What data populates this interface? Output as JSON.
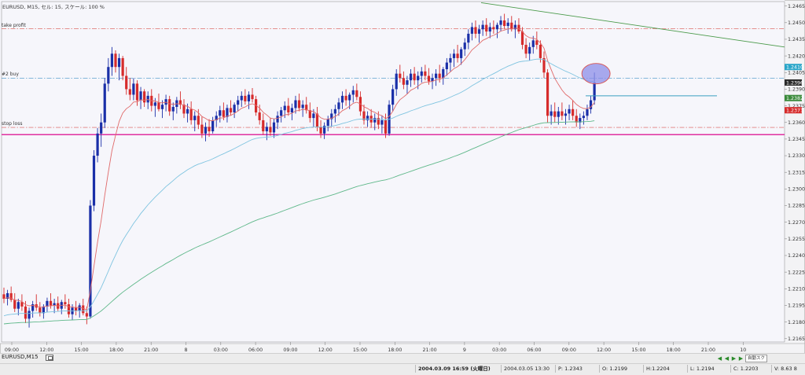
{
  "header": {
    "label": "EURUSD, M15, セル: 15, スケール: 100 %"
  },
  "hlines": [
    {
      "key": "tp",
      "label": "take profit",
      "price": 1.24445,
      "color": "#d9534f",
      "style": "dashdot",
      "width": 0.7
    },
    {
      "key": "buy",
      "label": "#2 buy",
      "price": 1.24,
      "color": "#3f8fc6",
      "style": "dashdot",
      "width": 0.7
    },
    {
      "key": "sl",
      "label": "stop loss",
      "price": 1.23555,
      "color": "#d9534f",
      "style": "dashdot",
      "width": 0.7
    },
    {
      "key": "magenta",
      "label": "",
      "price": 1.2349,
      "color": "#e0309f",
      "style": "solid",
      "width": 1.4
    }
  ],
  "price_axis": {
    "ticks": [
      "1.2465",
      "1.2450",
      "1.2435",
      "1.2420",
      "1.2405",
      "1.2390",
      "1.2375",
      "1.2360",
      "1.2345",
      "1.2330",
      "1.2315",
      "1.2300",
      "1.2285",
      "1.2270",
      "1.2255",
      "1.2240",
      "1.2225",
      "1.2210",
      "1.2195",
      "1.2180",
      "1.2165"
    ],
    "tags": [
      {
        "text": "1.2410",
        "price": 1.241,
        "color": "#2aa6c9",
        "fg": "#ffffff"
      },
      {
        "text": "1.2396",
        "price": 1.2396,
        "color": "#2b2b2b",
        "fg": "#ffffff"
      },
      {
        "text": "1.2382",
        "price": 1.2382,
        "color": "#3a8a3a",
        "fg": "#ffffff"
      },
      {
        "text": "1.2371",
        "price": 1.2371,
        "color": "#d62b2b",
        "fg": "#ffffff"
      }
    ]
  },
  "time_axis": {
    "labels": [
      "09:00",
      "12:00",
      "15:00",
      "18:00",
      "21:00",
      "8",
      "03:00",
      "06:00",
      "09:00",
      "12:00",
      "15:00",
      "18:00",
      "21:00",
      "9",
      "03:00",
      "06:00",
      "09:00",
      "12:00",
      "15:00",
      "18:00",
      "21:00",
      "10"
    ]
  },
  "bottom_tab": {
    "label": "EURUSD,M15"
  },
  "scroll": {
    "prev": "◀",
    "prev2": "◀",
    "next": "▶",
    "next2": "▶",
    "box": "自動スク"
  },
  "status": {
    "datetime": "2004.03.09 16:59 (火曜日)",
    "time2": "2004.03.05 13:30",
    "p": "P: 1.2343",
    "o": "O: 1.2199",
    "h": "H:1.2204",
    "l": "L: 1.2194",
    "c": "C: 1.2203",
    "v": "V: 8.63 8"
  },
  "chart_data": {
    "type": "candlestick",
    "symbol": "EURUSD",
    "timeframe": "M15",
    "y_range": [
      1.2162,
      1.2469
    ],
    "up_color": "#1a2fa8",
    "down_color": "#d62b2b",
    "candles": [
      [
        1.2205,
        1.2211,
        1.2197,
        1.2201
      ],
      [
        1.2201,
        1.2209,
        1.2195,
        1.2206
      ],
      [
        1.2206,
        1.2212,
        1.2198,
        1.22
      ],
      [
        1.22,
        1.2206,
        1.2189,
        1.2192
      ],
      [
        1.2192,
        1.2201,
        1.2186,
        1.2198
      ],
      [
        1.2198,
        1.2205,
        1.219,
        1.2194
      ],
      [
        1.2194,
        1.2199,
        1.2179,
        1.2183
      ],
      [
        1.2183,
        1.2193,
        1.2175,
        1.219
      ],
      [
        1.219,
        1.2199,
        1.2184,
        1.2196
      ],
      [
        1.2196,
        1.2205,
        1.219,
        1.2193
      ],
      [
        1.2193,
        1.2198,
        1.2185,
        1.2188
      ],
      [
        1.2188,
        1.2196,
        1.2183,
        1.2194
      ],
      [
        1.2194,
        1.2202,
        1.2189,
        1.2199
      ],
      [
        1.2199,
        1.2206,
        1.2192,
        1.2195
      ],
      [
        1.2195,
        1.2201,
        1.2188,
        1.2197
      ],
      [
        1.2197,
        1.2203,
        1.219,
        1.2192
      ],
      [
        1.2192,
        1.22,
        1.2187,
        1.2198
      ],
      [
        1.2198,
        1.2205,
        1.2192,
        1.2196
      ],
      [
        1.2196,
        1.2201,
        1.2184,
        1.2187
      ],
      [
        1.2187,
        1.2196,
        1.2182,
        1.2193
      ],
      [
        1.2193,
        1.2199,
        1.2186,
        1.219
      ],
      [
        1.219,
        1.2197,
        1.2184,
        1.2195
      ],
      [
        1.2195,
        1.2201,
        1.2186,
        1.2188
      ],
      [
        1.2188,
        1.2194,
        1.2178,
        1.2185
      ],
      [
        1.2185,
        1.229,
        1.2183,
        1.2285
      ],
      [
        1.2285,
        1.2335,
        1.228,
        1.233
      ],
      [
        1.233,
        1.2355,
        1.2324,
        1.235
      ],
      [
        1.235,
        1.2368,
        1.2338,
        1.236
      ],
      [
        1.236,
        1.24,
        1.2355,
        1.2395
      ],
      [
        1.2395,
        1.2418,
        1.2388,
        1.241
      ],
      [
        1.241,
        1.2428,
        1.2402,
        1.2422
      ],
      [
        1.2422,
        1.2425,
        1.2405,
        1.241
      ],
      [
        1.241,
        1.2422,
        1.2398,
        1.2418
      ],
      [
        1.2418,
        1.242,
        1.2398,
        1.2402
      ],
      [
        1.2402,
        1.241,
        1.2385,
        1.239
      ],
      [
        1.239,
        1.24,
        1.238,
        1.2385
      ],
      [
        1.2385,
        1.24,
        1.238,
        1.2395
      ],
      [
        1.2395,
        1.2398,
        1.2375,
        1.238
      ],
      [
        1.238,
        1.2392,
        1.2372,
        1.2388
      ],
      [
        1.2388,
        1.239,
        1.2374,
        1.2378
      ],
      [
        1.2378,
        1.2388,
        1.2372,
        1.2384
      ],
      [
        1.2384,
        1.239,
        1.237,
        1.2375
      ],
      [
        1.2375,
        1.2382,
        1.2365,
        1.2378
      ],
      [
        1.2378,
        1.2386,
        1.237,
        1.2372
      ],
      [
        1.2372,
        1.238,
        1.2364,
        1.2376
      ],
      [
        1.2376,
        1.2385,
        1.237,
        1.2381
      ],
      [
        1.2381,
        1.2384,
        1.2366,
        1.237
      ],
      [
        1.237,
        1.2378,
        1.2362,
        1.2374
      ],
      [
        1.2374,
        1.2383,
        1.2368,
        1.238
      ],
      [
        1.238,
        1.2388,
        1.2372,
        1.2376
      ],
      [
        1.2376,
        1.2381,
        1.2364,
        1.2368
      ],
      [
        1.2368,
        1.2377,
        1.236,
        1.2372
      ],
      [
        1.2372,
        1.2379,
        1.2358,
        1.2362
      ],
      [
        1.2362,
        1.237,
        1.2352,
        1.2366
      ],
      [
        1.2366,
        1.2372,
        1.2354,
        1.2358
      ],
      [
        1.2358,
        1.2365,
        1.2346,
        1.235
      ],
      [
        1.235,
        1.236,
        1.2343,
        1.2356
      ],
      [
        1.2356,
        1.2363,
        1.2347,
        1.2352
      ],
      [
        1.2352,
        1.2365,
        1.235,
        1.2362
      ],
      [
        1.2362,
        1.237,
        1.2356,
        1.2366
      ],
      [
        1.2366,
        1.2375,
        1.236,
        1.2371
      ],
      [
        1.2371,
        1.2378,
        1.2362,
        1.2365
      ],
      [
        1.2365,
        1.2376,
        1.236,
        1.2373
      ],
      [
        1.2373,
        1.238,
        1.2366,
        1.2369
      ],
      [
        1.2369,
        1.2378,
        1.2364,
        1.2376
      ],
      [
        1.2376,
        1.2384,
        1.237,
        1.238
      ],
      [
        1.238,
        1.2388,
        1.2374,
        1.2384
      ],
      [
        1.2384,
        1.239,
        1.2376,
        1.2379
      ],
      [
        1.2379,
        1.2388,
        1.2372,
        1.2385
      ],
      [
        1.2385,
        1.2391,
        1.2378,
        1.2381
      ],
      [
        1.2381,
        1.2384,
        1.2366,
        1.2369
      ],
      [
        1.2369,
        1.2376,
        1.2358,
        1.2362
      ],
      [
        1.2362,
        1.2368,
        1.2349,
        1.2352
      ],
      [
        1.2352,
        1.236,
        1.2344,
        1.2356
      ],
      [
        1.2356,
        1.2364,
        1.2348,
        1.2351
      ],
      [
        1.2351,
        1.2363,
        1.2346,
        1.236
      ],
      [
        1.236,
        1.237,
        1.2354,
        1.2366
      ],
      [
        1.2366,
        1.2374,
        1.236,
        1.2371
      ],
      [
        1.2371,
        1.2379,
        1.2364,
        1.2375
      ],
      [
        1.2375,
        1.2382,
        1.2366,
        1.2369
      ],
      [
        1.2369,
        1.2377,
        1.2362,
        1.2373
      ],
      [
        1.2373,
        1.2384,
        1.2368,
        1.238
      ],
      [
        1.238,
        1.2386,
        1.237,
        1.2373
      ],
      [
        1.2373,
        1.238,
        1.2365,
        1.2376
      ],
      [
        1.2376,
        1.2383,
        1.2368,
        1.2371
      ],
      [
        1.2371,
        1.2378,
        1.236,
        1.2364
      ],
      [
        1.2364,
        1.2372,
        1.2356,
        1.2368
      ],
      [
        1.2368,
        1.2374,
        1.2352,
        1.2356
      ],
      [
        1.2356,
        1.2362,
        1.2346,
        1.235
      ],
      [
        1.235,
        1.236,
        1.2345,
        1.2357
      ],
      [
        1.2357,
        1.2366,
        1.2352,
        1.2363
      ],
      [
        1.2363,
        1.2372,
        1.2356,
        1.2368
      ],
      [
        1.2368,
        1.2376,
        1.236,
        1.2372
      ],
      [
        1.2372,
        1.2382,
        1.2366,
        1.2378
      ],
      [
        1.2378,
        1.2388,
        1.2372,
        1.2384
      ],
      [
        1.2384,
        1.239,
        1.2375,
        1.238
      ],
      [
        1.238,
        1.2387,
        1.2372,
        1.2385
      ],
      [
        1.2385,
        1.2393,
        1.2378,
        1.2389
      ],
      [
        1.2389,
        1.2395,
        1.238,
        1.2383
      ],
      [
        1.2383,
        1.2388,
        1.2366,
        1.237
      ],
      [
        1.237,
        1.2376,
        1.2358,
        1.2362
      ],
      [
        1.2362,
        1.237,
        1.2356,
        1.2366
      ],
      [
        1.2366,
        1.2372,
        1.2355,
        1.236
      ],
      [
        1.236,
        1.2368,
        1.2353,
        1.2364
      ],
      [
        1.2364,
        1.237,
        1.2354,
        1.2358
      ],
      [
        1.2358,
        1.2366,
        1.235,
        1.2362
      ],
      [
        1.2362,
        1.2368,
        1.2346,
        1.235
      ],
      [
        1.235,
        1.238,
        1.2348,
        1.2376
      ],
      [
        1.2376,
        1.2394,
        1.237,
        1.239
      ],
      [
        1.239,
        1.2408,
        1.2384,
        1.2404
      ],
      [
        1.2404,
        1.2412,
        1.2396,
        1.24
      ],
      [
        1.24,
        1.2406,
        1.239,
        1.2394
      ],
      [
        1.2394,
        1.2402,
        1.2386,
        1.2398
      ],
      [
        1.2398,
        1.2408,
        1.2392,
        1.2404
      ],
      [
        1.2404,
        1.241,
        1.2394,
        1.2398
      ],
      [
        1.2398,
        1.2406,
        1.239,
        1.2402
      ],
      [
        1.2402,
        1.241,
        1.2396,
        1.2406
      ],
      [
        1.2406,
        1.2412,
        1.2398,
        1.2402
      ],
      [
        1.2402,
        1.2409,
        1.2394,
        1.2397
      ],
      [
        1.2397,
        1.2404,
        1.239,
        1.24
      ],
      [
        1.24,
        1.2408,
        1.2393,
        1.2404
      ],
      [
        1.2404,
        1.2412,
        1.2396,
        1.24
      ],
      [
        1.24,
        1.241,
        1.2394,
        1.2408
      ],
      [
        1.2408,
        1.2418,
        1.2402,
        1.2414
      ],
      [
        1.2414,
        1.2422,
        1.2406,
        1.2418
      ],
      [
        1.2418,
        1.2426,
        1.241,
        1.2422
      ],
      [
        1.2422,
        1.243,
        1.2414,
        1.2418
      ],
      [
        1.2418,
        1.2428,
        1.2412,
        1.2426
      ],
      [
        1.2426,
        1.2436,
        1.242,
        1.2432
      ],
      [
        1.2432,
        1.2444,
        1.2426,
        1.244
      ],
      [
        1.244,
        1.245,
        1.2434,
        1.2446
      ],
      [
        1.2446,
        1.2452,
        1.2436,
        1.244
      ],
      [
        1.244,
        1.2448,
        1.2432,
        1.2444
      ],
      [
        1.2444,
        1.2452,
        1.2438,
        1.2448
      ],
      [
        1.2448,
        1.2454,
        1.2438,
        1.2442
      ],
      [
        1.2442,
        1.245,
        1.2436,
        1.2446
      ],
      [
        1.2446,
        1.2452,
        1.244,
        1.2444
      ],
      [
        1.2444,
        1.245,
        1.2436,
        1.2448
      ],
      [
        1.2448,
        1.2456,
        1.2442,
        1.2452
      ],
      [
        1.2452,
        1.2458,
        1.2444,
        1.2447
      ],
      [
        1.2447,
        1.2454,
        1.244,
        1.245
      ],
      [
        1.245,
        1.2456,
        1.2442,
        1.2444
      ],
      [
        1.2444,
        1.2452,
        1.2436,
        1.2448
      ],
      [
        1.2448,
        1.2454,
        1.244,
        1.2442
      ],
      [
        1.2442,
        1.2446,
        1.2426,
        1.243
      ],
      [
        1.243,
        1.2436,
        1.2418,
        1.2422
      ],
      [
        1.2422,
        1.2432,
        1.2416,
        1.2428
      ],
      [
        1.2428,
        1.2438,
        1.2422,
        1.2434
      ],
      [
        1.2434,
        1.2442,
        1.2426,
        1.243
      ],
      [
        1.243,
        1.2434,
        1.2414,
        1.2418
      ],
      [
        1.2418,
        1.2424,
        1.24,
        1.2405
      ],
      [
        1.2405,
        1.2408,
        1.236,
        1.2366
      ],
      [
        1.2366,
        1.2376,
        1.2358,
        1.237
      ],
      [
        1.237,
        1.2378,
        1.236,
        1.2365
      ],
      [
        1.2365,
        1.2374,
        1.2358,
        1.237
      ],
      [
        1.237,
        1.2378,
        1.2362,
        1.2366
      ],
      [
        1.2366,
        1.2372,
        1.2358,
        1.2368
      ],
      [
        1.2368,
        1.2376,
        1.2362,
        1.2372
      ],
      [
        1.2372,
        1.238,
        1.2362,
        1.2366
      ],
      [
        1.2366,
        1.2372,
        1.2356,
        1.236
      ],
      [
        1.236,
        1.2368,
        1.2354,
        1.2364
      ],
      [
        1.2364,
        1.237,
        1.2358,
        1.2366
      ],
      [
        1.2366,
        1.2376,
        1.2362,
        1.2372
      ],
      [
        1.2372,
        1.2384,
        1.2368,
        1.238
      ],
      [
        1.238,
        1.2405,
        1.2376,
        1.2396
      ]
    ],
    "indicators": [
      {
        "name": "ma-red",
        "color": "#e06a6a"
      },
      {
        "name": "ma-blue",
        "color": "#7fc4e0"
      },
      {
        "name": "ma-green",
        "color": "#5fb88a"
      }
    ],
    "trendline": {
      "color": "#4a9a4a"
    },
    "circle_marker": {
      "price": 1.2404,
      "fill": "#8c8ee8",
      "stroke": "#d9534f"
    },
    "horizontal_segment": {
      "price": 1.2384,
      "color": "#3aa0c0"
    }
  }
}
